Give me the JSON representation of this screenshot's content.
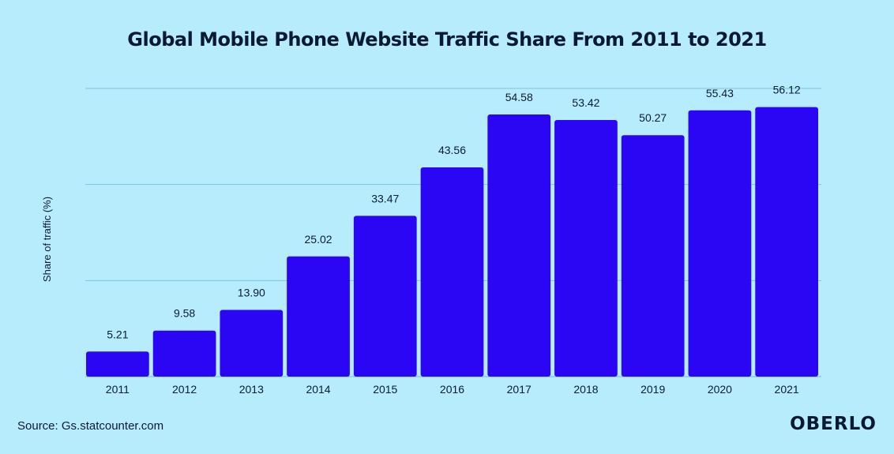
{
  "chart_data": {
    "type": "bar",
    "title": "Global Mobile Phone Website Traffic Share From 2011 to 2021",
    "xlabel": "",
    "ylabel": "Share of traffic (%)",
    "categories": [
      "2011",
      "2012",
      "2013",
      "2014",
      "2015",
      "2016",
      "2017",
      "2018",
      "2019",
      "2020",
      "2021"
    ],
    "values": [
      5.21,
      9.58,
      13.9,
      25.02,
      33.47,
      43.56,
      54.58,
      53.42,
      50.27,
      55.43,
      56.12
    ],
    "value_labels": [
      "5.21",
      "9.58",
      "13.90",
      "25.02",
      "33.47",
      "43.56",
      "54.58",
      "53.42",
      "50.27",
      "55.43",
      "56.12"
    ],
    "ylim": [
      0,
      60
    ],
    "grid": true,
    "legend": "none",
    "bar_color": "#2a06f5"
  },
  "footer": {
    "source": "Source: Gs.statcounter.com",
    "brand": "OBERLO"
  },
  "colors": {
    "background": "#b6ecfb",
    "text": "#0b1a33",
    "gridline": "#7fc6dc"
  }
}
